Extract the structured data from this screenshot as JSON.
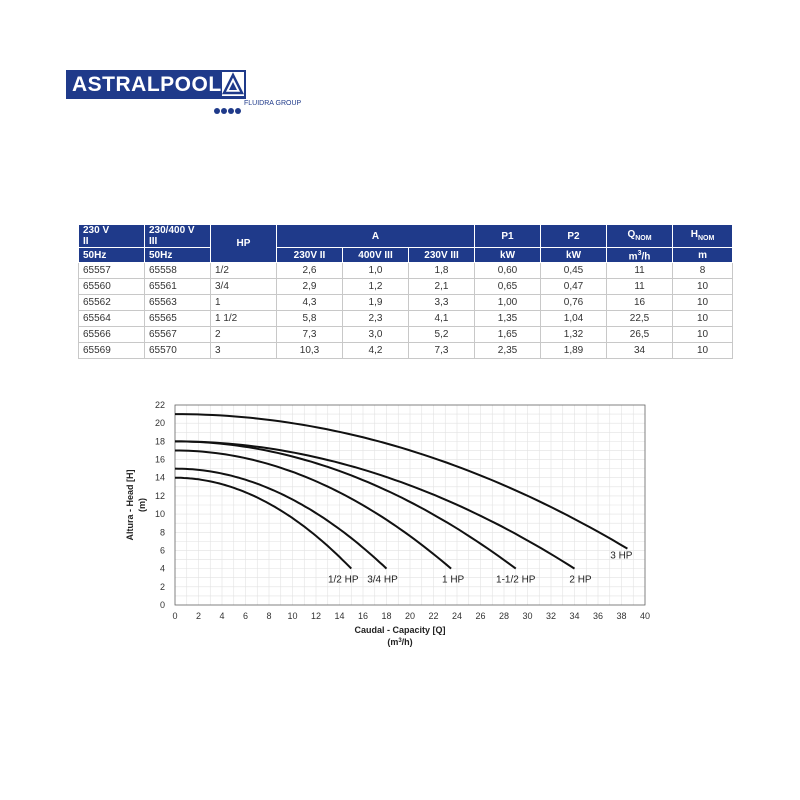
{
  "logo": {
    "brand": "ASTRALPOOL",
    "group": "FLUIDRA GROUP",
    "color": "#1f3a8a"
  },
  "table": {
    "headers_row1": [
      "230 V",
      "230/400 V",
      "HP",
      "A",
      "P1",
      "P2",
      "Q",
      "H"
    ],
    "headers_row1b": [
      "II",
      "III"
    ],
    "headers_row2": [
      "50Hz",
      "50Hz",
      "230V II",
      "400V III",
      "230V III",
      "kW",
      "kW",
      "m",
      "m"
    ],
    "q_sub": "NOM",
    "h_sub": "NOM",
    "q_unit_sup": "3",
    "q_unit_suffix": "/h",
    "rows": [
      [
        "65557",
        "65558",
        "1/2",
        "2,6",
        "1,0",
        "1,8",
        "0,60",
        "0,45",
        "11",
        "8"
      ],
      [
        "65560",
        "65561",
        "3/4",
        "2,9",
        "1,2",
        "2,1",
        "0,65",
        "0,47",
        "11",
        "10"
      ],
      [
        "65562",
        "65563",
        "1",
        "4,3",
        "1,9",
        "3,3",
        "1,00",
        "0,76",
        "16",
        "10"
      ],
      [
        "65564",
        "65565",
        "1 1/2",
        "5,8",
        "2,3",
        "4,1",
        "1,35",
        "1,04",
        "22,5",
        "10"
      ],
      [
        "65566",
        "65567",
        "2",
        "7,3",
        "3,0",
        "5,2",
        "1,65",
        "1,32",
        "26,5",
        "10"
      ],
      [
        "65569",
        "65570",
        "3",
        "10,3",
        "4,2",
        "7,3",
        "2,35",
        "1,89",
        "34",
        "10"
      ]
    ]
  },
  "chart_data": {
    "type": "line",
    "xlabel": "Caudal - Capacity [Q]",
    "xlabel_unit_pre": "(m",
    "xlabel_unit_sup": "3",
    "xlabel_unit_post": "/h)",
    "ylabel_line1": "Altura - Head [H]",
    "ylabel_line2": "(m)",
    "xlim": [
      0,
      40
    ],
    "ylim": [
      0,
      22
    ],
    "xticks": [
      "0",
      "2",
      "4",
      "6",
      "8",
      "10",
      "12",
      "14",
      "16",
      "18",
      "20",
      "22",
      "24",
      "26",
      "28",
      "30",
      "32",
      "34",
      "36",
      "38",
      "40"
    ],
    "yticks": [
      "0",
      "2",
      "4",
      "6",
      "8",
      "10",
      "12",
      "14",
      "16",
      "18",
      "20",
      "22"
    ],
    "grid": true,
    "series": [
      {
        "name": "1/2 HP",
        "h0": 14,
        "xend": 15,
        "yend": 4
      },
      {
        "name": "3/4 HP",
        "h0": 15,
        "xend": 18,
        "yend": 4
      },
      {
        "name": "1 HP",
        "h0": 17,
        "xend": 23.5,
        "yend": 4
      },
      {
        "name": "1-1/2 HP",
        "h0": 18,
        "xend": 29,
        "yend": 4
      },
      {
        "name": "2 HP",
        "h0": 18,
        "xend": 34,
        "yend": 4
      },
      {
        "name": "3 HP",
        "h0": 21,
        "xend": 38.5,
        "yend": 6.2
      }
    ]
  }
}
